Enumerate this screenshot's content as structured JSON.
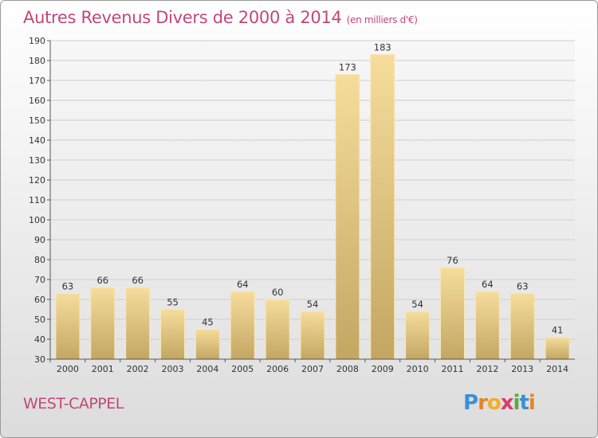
{
  "header": {
    "title": "Autres Revenus Divers de 2000 à 2014",
    "subtitle": "(en milliers d'€)"
  },
  "footer": {
    "town": "WEST-CAPPEL",
    "logo_letters": [
      "P",
      "r",
      "o",
      "x",
      "i",
      "t",
      "i"
    ]
  },
  "colors": {
    "title": "#c2477a",
    "bar_light": "#f5dc9a",
    "bar_dark": "#c4a865",
    "logo": [
      "#3c8fd6",
      "#e3842b",
      "#f2b01e",
      "#d73e6e",
      "#5aaa3d",
      "#3c8fd6",
      "#e3842b"
    ]
  },
  "chart_data": {
    "type": "bar",
    "title": "Autres Revenus Divers de 2000 à 2014",
    "subtitle": "(en milliers d'€)",
    "categories": [
      "2000",
      "2001",
      "2002",
      "2003",
      "2004",
      "2005",
      "2006",
      "2007",
      "2008",
      "2009",
      "2010",
      "2011",
      "2012",
      "2013",
      "2014"
    ],
    "values": [
      63,
      66,
      66,
      55,
      45,
      64,
      60,
      54,
      173,
      183,
      54,
      76,
      64,
      63,
      41
    ],
    "ylim": [
      30,
      190
    ],
    "yticks": [
      30,
      40,
      50,
      60,
      70,
      80,
      90,
      100,
      110,
      120,
      130,
      140,
      150,
      160,
      170,
      180,
      190
    ],
    "grid": true,
    "xlabel": "",
    "ylabel": ""
  }
}
